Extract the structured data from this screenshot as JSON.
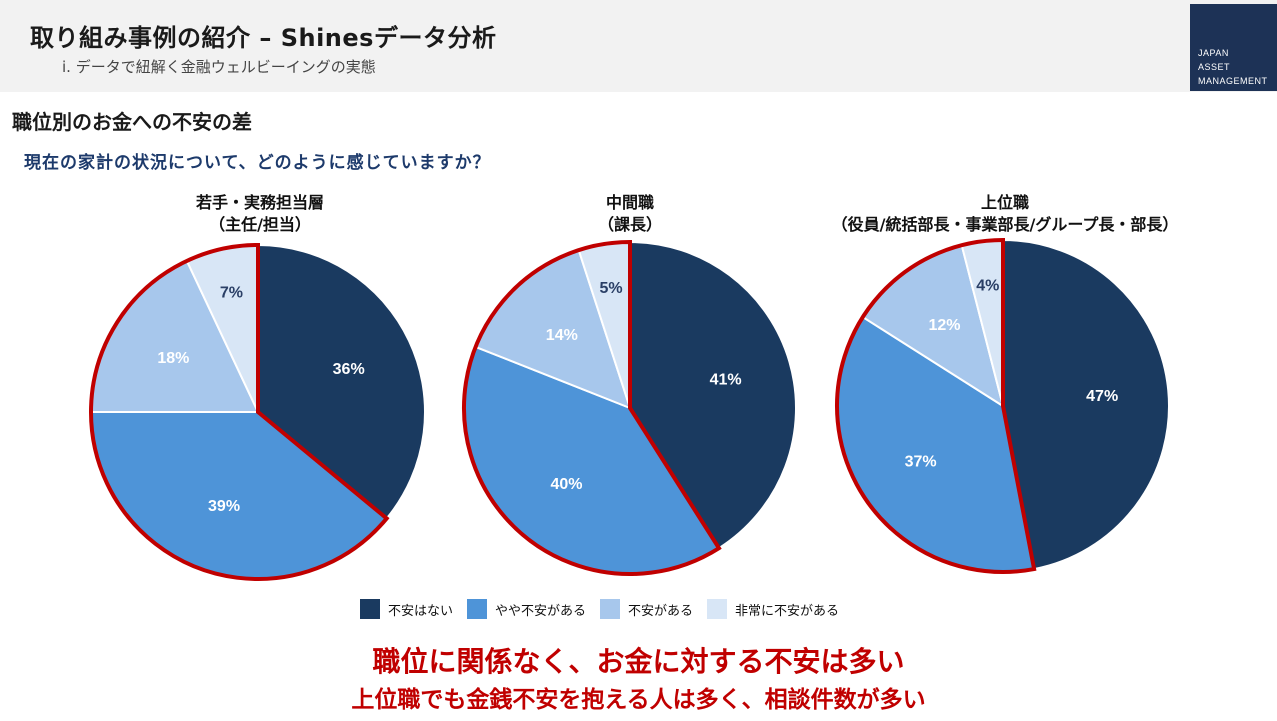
{
  "header": {
    "title": "取り組み事例の紹介 – Shinesデータ分析",
    "subtitle": "ⅰ. データで紐解く金融ウェルビーイングの実態"
  },
  "logo": {
    "line1": "JAPAN",
    "line2": "ASSET",
    "line3": "MANAGEMENT"
  },
  "section_title": "職位別のお金への不安の差",
  "question": "現在の家計の状況について、どのように感じていますか？",
  "colors": {
    "navy": "#1a3a60",
    "mid_blue": "#4e94d8",
    "light_blue": "#a7c7ec",
    "pale_blue": "#d8e6f6",
    "highlight_red": "#c00000"
  },
  "chart_data": {
    "type": "pie",
    "categories": [
      "不安はない",
      "やや不安がある",
      "不安がある",
      "非常に不安がある"
    ],
    "series": [
      {
        "name": "若手・実務担当層",
        "title_line1": "若手・実務担当層",
        "title_line2": "（主任/担当）",
        "values": [
          36,
          39,
          18,
          7
        ]
      },
      {
        "name": "中間職",
        "title_line1": "中間職",
        "title_line2": "（課長）",
        "values": [
          41,
          40,
          14,
          5
        ]
      },
      {
        "name": "上位職",
        "title_line1": "上位職",
        "title_line2": "（役員/統括部長・事業部長/グループ長・部長）",
        "values": [
          47,
          37,
          12,
          4
        ]
      }
    ],
    "unit": "%",
    "highlighted_categories": [
      "やや不安がある",
      "不安がある",
      "非常に不安がある"
    ],
    "legend_position": "bottom"
  },
  "conclusion": {
    "line1": "職位に関係なく、お金に対する不安は多い",
    "line2": "上位職でも金銭不安を抱える人は多く、相談件数が多い"
  }
}
